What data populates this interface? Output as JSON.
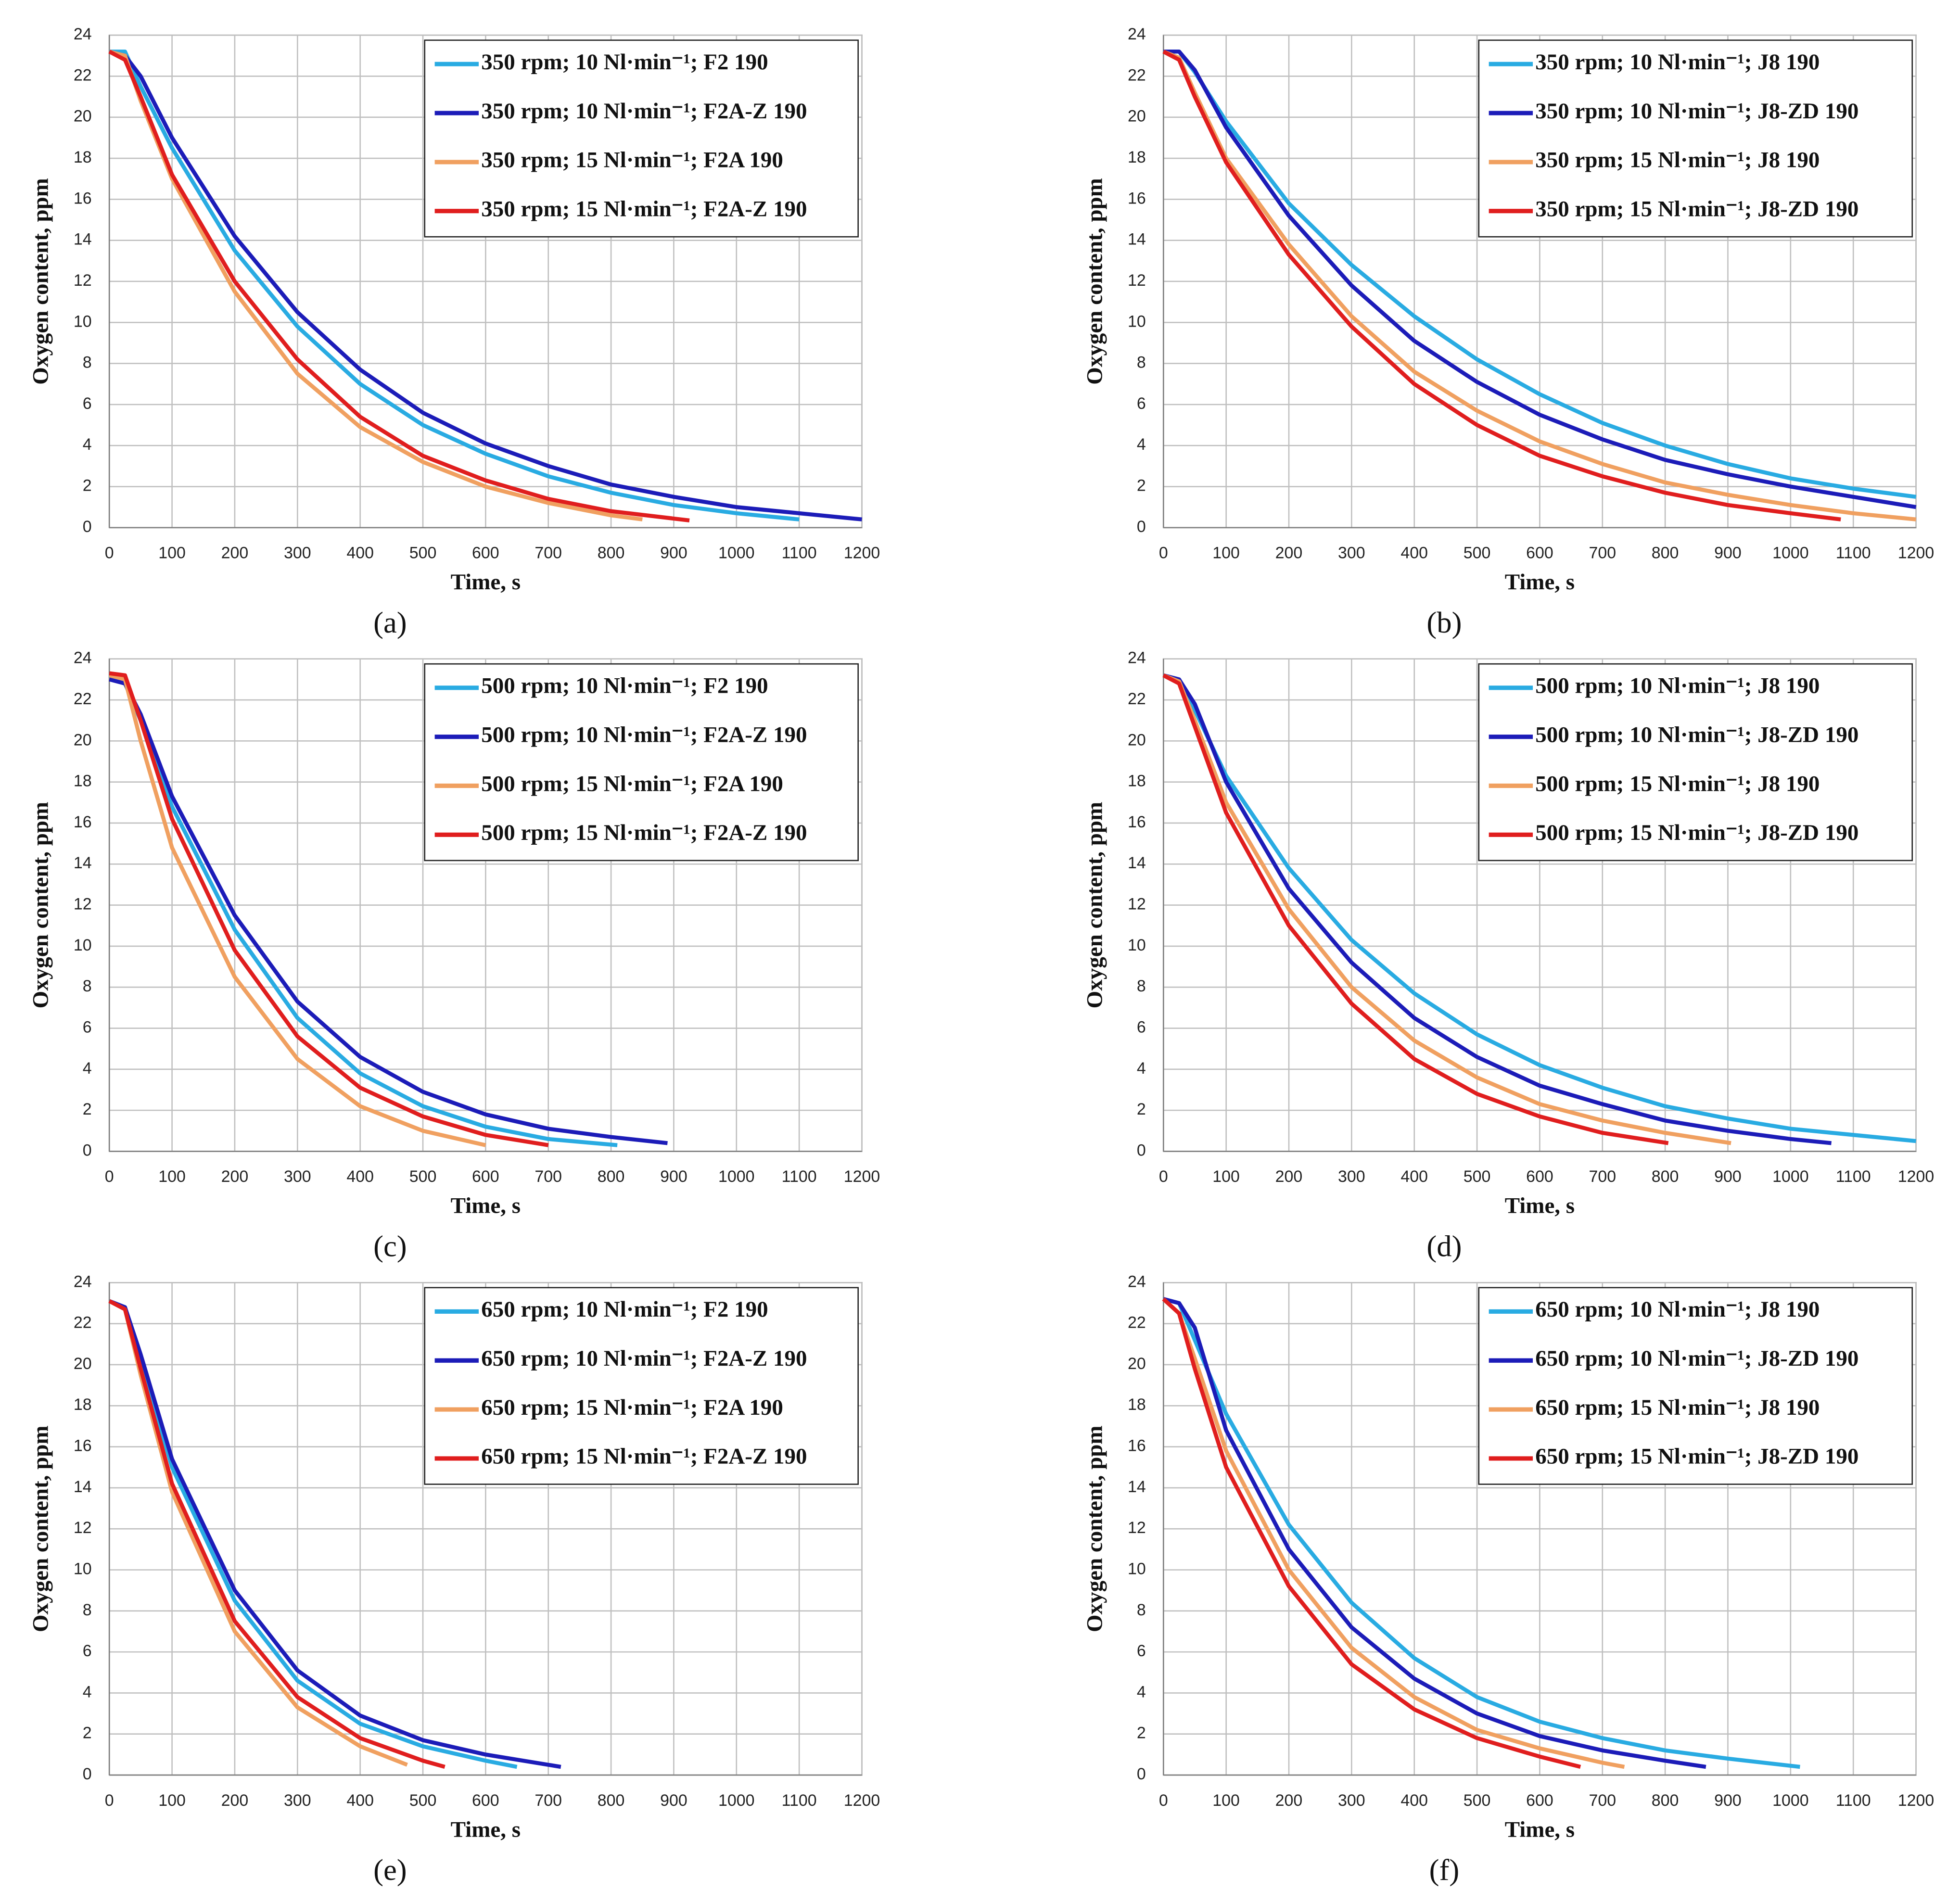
{
  "chart_data": [
    {
      "type": "line",
      "label": "(a)",
      "xlabel": "Time, s",
      "ylabel": "Oxygen content, ppm",
      "xlim": [
        0,
        1200
      ],
      "ylim": [
        0,
        24
      ],
      "xticks": [
        0,
        100,
        200,
        300,
        400,
        500,
        600,
        700,
        800,
        900,
        1000,
        1100,
        1200
      ],
      "yticks": [
        0,
        2,
        4,
        6,
        8,
        10,
        12,
        14,
        16,
        18,
        20,
        22,
        24
      ],
      "grid": true,
      "legend": "upper right",
      "series": [
        {
          "name": "350 rpm; 10 Nl·min⁻¹; F2 190",
          "color": "#29abe2",
          "x": [
            0,
            25,
            50,
            100,
            200,
            300,
            400,
            500,
            600,
            700,
            800,
            900,
            1000,
            1100
          ],
          "values": [
            23.2,
            23.2,
            21.5,
            18.5,
            13.5,
            9.8,
            7.0,
            5.0,
            3.6,
            2.5,
            1.7,
            1.1,
            0.7,
            0.4
          ]
        },
        {
          "name": "350 rpm; 10 Nl·min⁻¹; F2A-Z 190",
          "color": "#1c1cb8",
          "x": [
            0,
            25,
            50,
            100,
            200,
            300,
            400,
            500,
            600,
            700,
            800,
            900,
            1000,
            1100,
            1200
          ],
          "values": [
            23.2,
            23.0,
            22.0,
            19.0,
            14.2,
            10.5,
            7.7,
            5.6,
            4.1,
            3.0,
            2.1,
            1.5,
            1.0,
            0.7,
            0.4
          ]
        },
        {
          "name": "350 rpm; 15 Nl·min⁻¹; F2A 190",
          "color": "#f0a060",
          "x": [
            0,
            25,
            50,
            100,
            200,
            300,
            400,
            500,
            600,
            700,
            800,
            850
          ],
          "values": [
            23.2,
            23.0,
            20.8,
            17.0,
            11.5,
            7.5,
            4.9,
            3.2,
            2.0,
            1.2,
            0.6,
            0.4
          ]
        },
        {
          "name": "350 rpm; 15 Nl·min⁻¹; F2A-Z 190",
          "color": "#e01e1e",
          "x": [
            0,
            25,
            50,
            100,
            200,
            300,
            400,
            500,
            600,
            700,
            800,
            925
          ],
          "values": [
            23.2,
            22.8,
            21.0,
            17.2,
            12.0,
            8.2,
            5.4,
            3.5,
            2.3,
            1.4,
            0.8,
            0.35
          ]
        }
      ]
    },
    {
      "type": "line",
      "label": "(b)",
      "xlabel": "Time, s",
      "ylabel": "Oxygen content, ppm",
      "xlim": [
        0,
        1200
      ],
      "ylim": [
        0,
        24
      ],
      "xticks": [
        0,
        100,
        200,
        300,
        400,
        500,
        600,
        700,
        800,
        900,
        1000,
        1100,
        1200
      ],
      "yticks": [
        0,
        2,
        4,
        6,
        8,
        10,
        12,
        14,
        16,
        18,
        20,
        22,
        24
      ],
      "grid": true,
      "legend": "upper right",
      "series": [
        {
          "name": "350 rpm; 10 Nl·min⁻¹; J8 190",
          "color": "#29abe2",
          "x": [
            0,
            25,
            50,
            100,
            200,
            300,
            400,
            500,
            600,
            700,
            800,
            900,
            1000,
            1100,
            1200
          ],
          "values": [
            23.2,
            23.2,
            22.2,
            19.8,
            15.8,
            12.8,
            10.3,
            8.2,
            6.5,
            5.1,
            4.0,
            3.1,
            2.4,
            1.9,
            1.5
          ]
        },
        {
          "name": "350 rpm; 10 Nl·min⁻¹; J8-ZD 190",
          "color": "#1c1cb8",
          "x": [
            0,
            25,
            50,
            100,
            200,
            300,
            400,
            500,
            600,
            700,
            800,
            900,
            1000,
            1100,
            1200
          ],
          "values": [
            23.2,
            23.2,
            22.3,
            19.5,
            15.2,
            11.8,
            9.1,
            7.1,
            5.5,
            4.3,
            3.3,
            2.6,
            2.0,
            1.5,
            1.0
          ]
        },
        {
          "name": "350 rpm; 15 Nl·min⁻¹; J8 190",
          "color": "#f0a060",
          "x": [
            0,
            25,
            50,
            100,
            200,
            300,
            400,
            500,
            600,
            700,
            800,
            900,
            1000,
            1100,
            1200
          ],
          "values": [
            23.2,
            22.9,
            21.2,
            18.0,
            13.8,
            10.3,
            7.6,
            5.7,
            4.2,
            3.1,
            2.2,
            1.6,
            1.1,
            0.7,
            0.4
          ]
        },
        {
          "name": "350 rpm; 15 Nl·min⁻¹; J8-ZD 190",
          "color": "#e01e1e",
          "x": [
            0,
            25,
            50,
            100,
            200,
            300,
            400,
            500,
            600,
            700,
            800,
            900,
            1000,
            1080
          ],
          "values": [
            23.2,
            22.8,
            21.0,
            17.8,
            13.3,
            9.8,
            7.0,
            5.0,
            3.5,
            2.5,
            1.7,
            1.1,
            0.7,
            0.4
          ]
        }
      ]
    },
    {
      "type": "line",
      "label": "(c)",
      "xlabel": "Time, s",
      "ylabel": "Oxygen content, ppm",
      "xlim": [
        0,
        1200
      ],
      "ylim": [
        0,
        24
      ],
      "xticks": [
        0,
        100,
        200,
        300,
        400,
        500,
        600,
        700,
        800,
        900,
        1000,
        1100,
        1200
      ],
      "yticks": [
        0,
        2,
        4,
        6,
        8,
        10,
        12,
        14,
        16,
        18,
        20,
        22,
        24
      ],
      "grid": true,
      "legend": "upper right",
      "series": [
        {
          "name": "500 rpm; 10 Nl·min⁻¹; F2 190",
          "color": "#29abe2",
          "x": [
            0,
            25,
            50,
            100,
            200,
            300,
            400,
            500,
            600,
            700,
            810
          ],
          "values": [
            23.2,
            22.8,
            21.0,
            16.8,
            10.8,
            6.5,
            3.8,
            2.2,
            1.2,
            0.6,
            0.3
          ]
        },
        {
          "name": "500 rpm; 10 Nl·min⁻¹; F2A-Z 190",
          "color": "#1c1cb8",
          "x": [
            0,
            25,
            50,
            100,
            200,
            300,
            400,
            500,
            600,
            700,
            800,
            890
          ],
          "values": [
            23.0,
            22.8,
            21.3,
            17.3,
            11.5,
            7.3,
            4.6,
            2.9,
            1.8,
            1.1,
            0.7,
            0.4
          ]
        },
        {
          "name": "500 rpm; 15 Nl·min⁻¹; F2A 190",
          "color": "#f0a060",
          "x": [
            0,
            25,
            50,
            100,
            200,
            300,
            400,
            500,
            600
          ],
          "values": [
            23.2,
            23.0,
            20.0,
            14.8,
            8.5,
            4.5,
            2.2,
            1.0,
            0.3
          ]
        },
        {
          "name": "500 rpm; 15 Nl·min⁻¹; F2A-Z 190",
          "color": "#e01e1e",
          "x": [
            0,
            25,
            50,
            100,
            200,
            300,
            400,
            500,
            600,
            700
          ],
          "values": [
            23.3,
            23.2,
            21.0,
            16.2,
            9.8,
            5.6,
            3.1,
            1.7,
            0.8,
            0.3
          ]
        }
      ]
    },
    {
      "type": "line",
      "label": "(d)",
      "xlabel": "Time, s",
      "ylabel": "Oxygen content, ppm",
      "xlim": [
        0,
        1200
      ],
      "ylim": [
        0,
        24
      ],
      "xticks": [
        0,
        100,
        200,
        300,
        400,
        500,
        600,
        700,
        800,
        900,
        1000,
        1100,
        1200
      ],
      "yticks": [
        0,
        2,
        4,
        6,
        8,
        10,
        12,
        14,
        16,
        18,
        20,
        22,
        24
      ],
      "grid": true,
      "legend": "upper right",
      "series": [
        {
          "name": "500 rpm; 10 Nl·min⁻¹; J8 190",
          "color": "#29abe2",
          "x": [
            0,
            25,
            50,
            100,
            200,
            300,
            400,
            500,
            600,
            700,
            800,
            900,
            1000,
            1100,
            1200
          ],
          "values": [
            23.2,
            23.0,
            21.5,
            18.3,
            13.8,
            10.3,
            7.7,
            5.7,
            4.2,
            3.1,
            2.2,
            1.6,
            1.1,
            0.8,
            0.5
          ]
        },
        {
          "name": "500 rpm; 10 Nl·min⁻¹; J8-ZD 190",
          "color": "#1c1cb8",
          "x": [
            0,
            25,
            50,
            100,
            200,
            300,
            400,
            500,
            600,
            700,
            800,
            900,
            1000,
            1065
          ],
          "values": [
            23.2,
            23.0,
            21.8,
            18.0,
            12.8,
            9.2,
            6.5,
            4.6,
            3.2,
            2.3,
            1.5,
            1.0,
            0.6,
            0.4
          ]
        },
        {
          "name": "500 rpm; 15 Nl·min⁻¹; J8 190",
          "color": "#f0a060",
          "x": [
            0,
            25,
            50,
            100,
            200,
            300,
            400,
            500,
            600,
            700,
            800,
            905
          ],
          "values": [
            23.2,
            22.9,
            21.0,
            17.0,
            11.8,
            8.0,
            5.4,
            3.6,
            2.3,
            1.5,
            0.9,
            0.4
          ]
        },
        {
          "name": "500 rpm; 15 Nl·min⁻¹; J8-ZD 190",
          "color": "#e01e1e",
          "x": [
            0,
            25,
            50,
            100,
            200,
            300,
            400,
            500,
            600,
            700,
            805
          ],
          "values": [
            23.2,
            22.8,
            20.7,
            16.5,
            11.0,
            7.2,
            4.5,
            2.8,
            1.7,
            0.9,
            0.4
          ]
        }
      ]
    },
    {
      "type": "line",
      "label": "(e)",
      "xlabel": "Time, s",
      "ylabel": "Oxygen content, ppm",
      "xlim": [
        0,
        1200
      ],
      "ylim": [
        0,
        24
      ],
      "xticks": [
        0,
        100,
        200,
        300,
        400,
        500,
        600,
        700,
        800,
        900,
        1000,
        1100,
        1200
      ],
      "yticks": [
        0,
        2,
        4,
        6,
        8,
        10,
        12,
        14,
        16,
        18,
        20,
        22,
        24
      ],
      "grid": true,
      "legend": "upper right",
      "series": [
        {
          "name": "650 rpm; 10 Nl·min⁻¹; F2 190",
          "color": "#29abe2",
          "x": [
            0,
            25,
            50,
            100,
            200,
            300,
            400,
            500,
            600,
            650
          ],
          "values": [
            23.1,
            22.8,
            20.3,
            15.0,
            8.5,
            4.6,
            2.5,
            1.4,
            0.7,
            0.4
          ]
        },
        {
          "name": "650 rpm; 10 Nl·min⁻¹; F2A-Z 190",
          "color": "#1c1cb8",
          "x": [
            0,
            25,
            50,
            100,
            200,
            300,
            400,
            500,
            600,
            720
          ],
          "values": [
            23.1,
            22.8,
            20.5,
            15.4,
            9.0,
            5.1,
            2.9,
            1.7,
            1.0,
            0.4
          ]
        },
        {
          "name": "650 rpm; 15 Nl·min⁻¹; F2A 190",
          "color": "#f0a060",
          "x": [
            0,
            25,
            50,
            100,
            200,
            300,
            400,
            475
          ],
          "values": [
            23.1,
            22.7,
            19.5,
            13.8,
            7.0,
            3.3,
            1.4,
            0.5
          ]
        },
        {
          "name": "650 rpm; 15 Nl·min⁻¹; F2A-Z 190",
          "color": "#e01e1e",
          "x": [
            0,
            25,
            50,
            100,
            200,
            300,
            400,
            500,
            535
          ],
          "values": [
            23.1,
            22.7,
            19.8,
            14.2,
            7.5,
            3.8,
            1.8,
            0.7,
            0.4
          ]
        }
      ]
    },
    {
      "type": "line",
      "label": "(f)",
      "xlabel": "Time, s",
      "ylabel": "Oxygen content, ppm",
      "xlim": [
        0,
        1200
      ],
      "ylim": [
        0,
        24
      ],
      "xticks": [
        0,
        100,
        200,
        300,
        400,
        500,
        600,
        700,
        800,
        900,
        1000,
        1100,
        1200
      ],
      "yticks": [
        0,
        2,
        4,
        6,
        8,
        10,
        12,
        14,
        16,
        18,
        20,
        22,
        24
      ],
      "grid": true,
      "legend": "upper right",
      "series": [
        {
          "name": "650 rpm; 10 Nl·min⁻¹; J8 190",
          "color": "#29abe2",
          "x": [
            0,
            25,
            50,
            100,
            200,
            300,
            400,
            500,
            600,
            700,
            800,
            900,
            1015
          ],
          "values": [
            23.2,
            23.0,
            21.2,
            17.6,
            12.2,
            8.4,
            5.7,
            3.8,
            2.6,
            1.8,
            1.2,
            0.8,
            0.4
          ]
        },
        {
          "name": "650 rpm; 10 Nl·min⁻¹; J8-ZD 190",
          "color": "#1c1cb8",
          "x": [
            0,
            25,
            50,
            100,
            200,
            300,
            400,
            500,
            600,
            700,
            800,
            865
          ],
          "values": [
            23.2,
            23.0,
            21.8,
            16.8,
            11.0,
            7.2,
            4.7,
            3.0,
            1.9,
            1.2,
            0.7,
            0.4
          ]
        },
        {
          "name": "650 rpm; 15 Nl·min⁻¹; J8 190",
          "color": "#f0a060",
          "x": [
            0,
            25,
            50,
            100,
            200,
            300,
            400,
            500,
            600,
            700,
            735
          ],
          "values": [
            23.2,
            22.5,
            20.3,
            15.8,
            10.0,
            6.2,
            3.8,
            2.2,
            1.3,
            0.6,
            0.4
          ]
        },
        {
          "name": "650 rpm; 15 Nl·min⁻¹; J8-ZD 190",
          "color": "#e01e1e",
          "x": [
            0,
            25,
            50,
            100,
            200,
            300,
            400,
            500,
            600,
            665
          ],
          "values": [
            23.2,
            22.5,
            19.8,
            15.0,
            9.2,
            5.4,
            3.2,
            1.8,
            0.9,
            0.4
          ]
        }
      ]
    }
  ]
}
